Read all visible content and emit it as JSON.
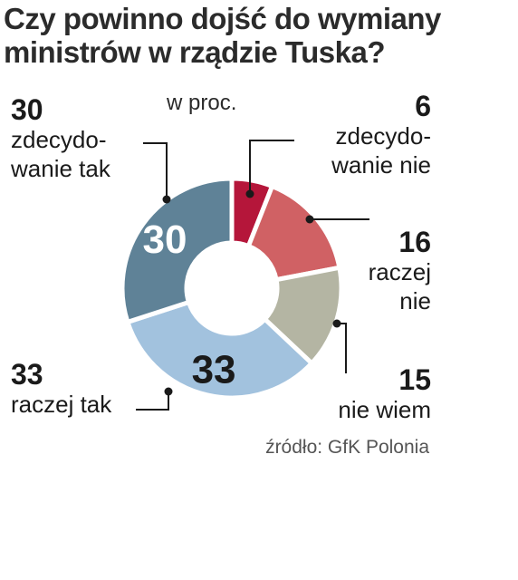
{
  "title_line1": "Czy powinno dojść do wymiany",
  "title_line2": "ministrów w rządzie Tuska?",
  "unit": "w proc.",
  "source": "źródło: GfK Polonia",
  "chart_data": {
    "type": "pie",
    "donut": true,
    "title": "Czy powinno dojść do wymiany ministrów w rządzie Tuska?",
    "unit": "w proc.",
    "categories": [
      "zdecydowanie nie",
      "raczej nie",
      "nie wiem",
      "raczej tak",
      "zdecydowanie tak"
    ],
    "values": [
      6,
      16,
      15,
      33,
      30
    ],
    "colors": [
      "#b5163a",
      "#d06164",
      "#b4b5a3",
      "#a2c2de",
      "#5f8297"
    ],
    "labels": [
      {
        "num": "6",
        "text": "zdecydo-\nwanie nie"
      },
      {
        "num": "16",
        "text": "raczej\nnie"
      },
      {
        "num": "15",
        "text": "nie wiem"
      },
      {
        "num": "33",
        "text": "raczej tak"
      },
      {
        "num": "30",
        "text": "zdecydo-\nwanie tak"
      }
    ],
    "inner_labels": {
      "raczej tak": "33",
      "zdecydowanie tak": "30"
    }
  }
}
